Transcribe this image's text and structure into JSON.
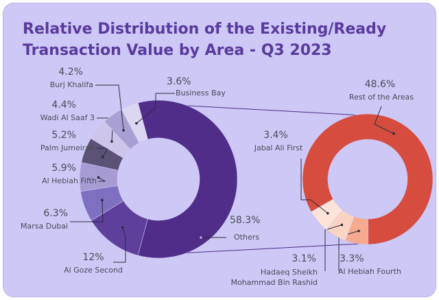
{
  "chart_data": [
    {
      "type": "donut",
      "title": "Relative Distribution of the Existing/Ready Transaction Value by Area - Q3 2023",
      "categories": [
        "Others",
        "Al Goze Second",
        "Marsa Dubai",
        "Al Hebiah Fifth",
        "Palm Jumeirah",
        "Wadi Al Saaf 3",
        "Burj Khalifa",
        "Business Bay"
      ],
      "values": [
        58.3,
        12,
        6.3,
        5.9,
        5.2,
        4.4,
        4.2,
        3.6
      ],
      "value_labels": [
        "58.3%",
        "12%",
        "6.3%",
        "5.9%",
        "5.2%",
        "4.4%",
        "4.2%",
        "3.6%"
      ],
      "colors": [
        "#4f2d88",
        "#5e3f9c",
        "#7f6fc0",
        "#a69bd3",
        "#5b5275",
        "#cdc6ea",
        "#a99fd2",
        "#dcd7f1"
      ]
    },
    {
      "type": "donut",
      "categories": [
        "Rest of the Areas",
        "Al Hebiah Fourth",
        "Hadaeq Sheikh Mohammad Bin Rashid",
        "Jabal Ali First"
      ],
      "values": [
        48.6,
        3.3,
        3.1,
        3.4
      ],
      "value_labels": [
        "48.6%",
        "3.3%",
        "3.1%",
        "3.4%"
      ],
      "colors": [
        "#d64c3e",
        "#f6a98e",
        "#fbd3c2",
        "#fde3d8"
      ]
    }
  ]
}
